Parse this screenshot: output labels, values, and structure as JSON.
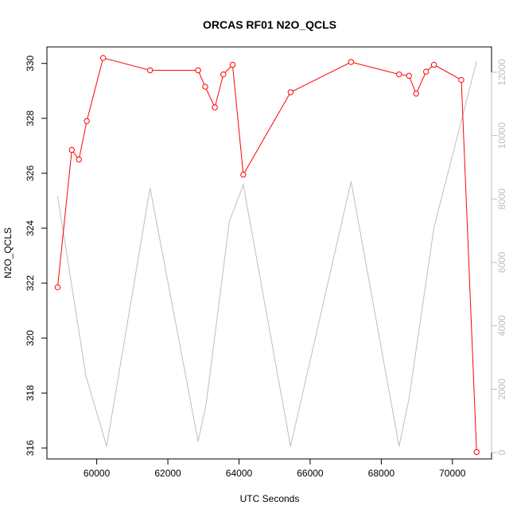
{
  "chart_data": {
    "type": "line",
    "title": "ORCAS RF01 N2O_QCLS",
    "xlabel": "UTC Seconds",
    "ylabel": "N2O_QCLS",
    "xlim": [
      58600,
      71100
    ],
    "ylim": [
      315.6,
      330.6
    ],
    "y2lim": [
      -200,
      12800
    ],
    "x_ticks": [
      60000,
      62000,
      64000,
      66000,
      68000,
      70000
    ],
    "y_ticks": [
      316,
      318,
      320,
      322,
      324,
      326,
      328,
      330
    ],
    "y2_ticks": [
      0,
      2000,
      4000,
      6000,
      8000,
      10000,
      12000
    ],
    "x_tick_labels": [
      "60000",
      "62000",
      "64000",
      "66000",
      "68000",
      "70000"
    ],
    "y_tick_labels": [
      "316",
      "318",
      "320",
      "322",
      "324",
      "326",
      "328",
      "330"
    ],
    "y2_tick_labels": [
      "0",
      "2000",
      "4000",
      "6000",
      "8000",
      "10000",
      "12000"
    ],
    "grid": false,
    "series": [
      {
        "axis": "left",
        "color": "#ff0000",
        "marker": "open-circle",
        "x": [
          58900,
          59300,
          59500,
          59720,
          60180,
          61500,
          62850,
          63050,
          63320,
          63560,
          63820,
          64120,
          65450,
          67150,
          68500,
          68780,
          68980,
          69260,
          69480,
          70250,
          70680
        ],
        "y": [
          321.85,
          326.85,
          326.5,
          327.9,
          330.2,
          329.75,
          329.75,
          329.15,
          328.4,
          329.6,
          329.95,
          325.95,
          328.95,
          330.05,
          329.6,
          329.55,
          328.9,
          329.7,
          329.95,
          329.4,
          315.85
        ]
      },
      {
        "axis": "right",
        "color": "#bebebe",
        "marker": "none",
        "x": [
          58900,
          59700,
          60280,
          61500,
          62850,
          63080,
          63730,
          64120,
          65450,
          67150,
          68500,
          68780,
          69480,
          70680
        ],
        "y": [
          8100,
          2400,
          200,
          8350,
          350,
          1550,
          7300,
          8450,
          200,
          8550,
          200,
          1700,
          7100,
          12350
        ]
      }
    ]
  }
}
